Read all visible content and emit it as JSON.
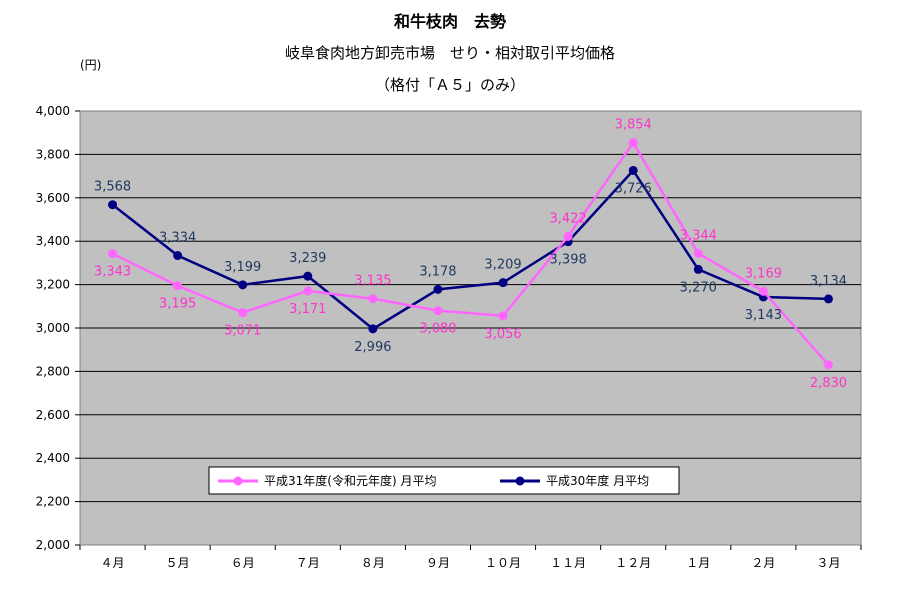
{
  "header": {
    "title": "和牛枝肉　去勢",
    "subtitle": "岐阜食肉地方卸売市場　せり・相対取引平均価格",
    "note": "（格付「Ａ５」のみ）",
    "unit": "(円)"
  },
  "chart_data": {
    "type": "line",
    "categories": [
      "４月",
      "５月",
      "６月",
      "７月",
      "８月",
      "９月",
      "１０月",
      "１１月",
      "１２月",
      "１月",
      "２月",
      "３月"
    ],
    "ylim": [
      2000,
      4000
    ],
    "yticks": [
      "2,000",
      "2,200",
      "2,400",
      "2,600",
      "2,800",
      "3,000",
      "3,200",
      "3,400",
      "3,600",
      "3,800",
      "4,000"
    ],
    "grid": true,
    "legend_position": "bottom-center",
    "series": [
      {
        "name": "平成31年度(令和元年度) 月平均",
        "color": "#ff66ff",
        "values": [
          3343,
          3195,
          3071,
          3171,
          3135,
          3080,
          3056,
          3422,
          3854,
          3344,
          3169,
          2830
        ],
        "labels": [
          "3,343",
          "3,195",
          "3,071",
          "3,171",
          "3,135",
          "3,080",
          "3,056",
          "3,422",
          "3,854",
          "3,344",
          "3,169",
          "2,830"
        ]
      },
      {
        "name": "平成30年度 月平均",
        "color": "#000080",
        "values": [
          3568,
          3334,
          3199,
          3239,
          2996,
          3178,
          3209,
          3398,
          3726,
          3270,
          3143,
          3134
        ],
        "labels": [
          "3,568",
          "3,334",
          "3,199",
          "3,239",
          "2,996",
          "3,178",
          "3,209",
          "3,398",
          "3,726",
          "3,270",
          "3,143",
          "3,134"
        ]
      }
    ]
  }
}
